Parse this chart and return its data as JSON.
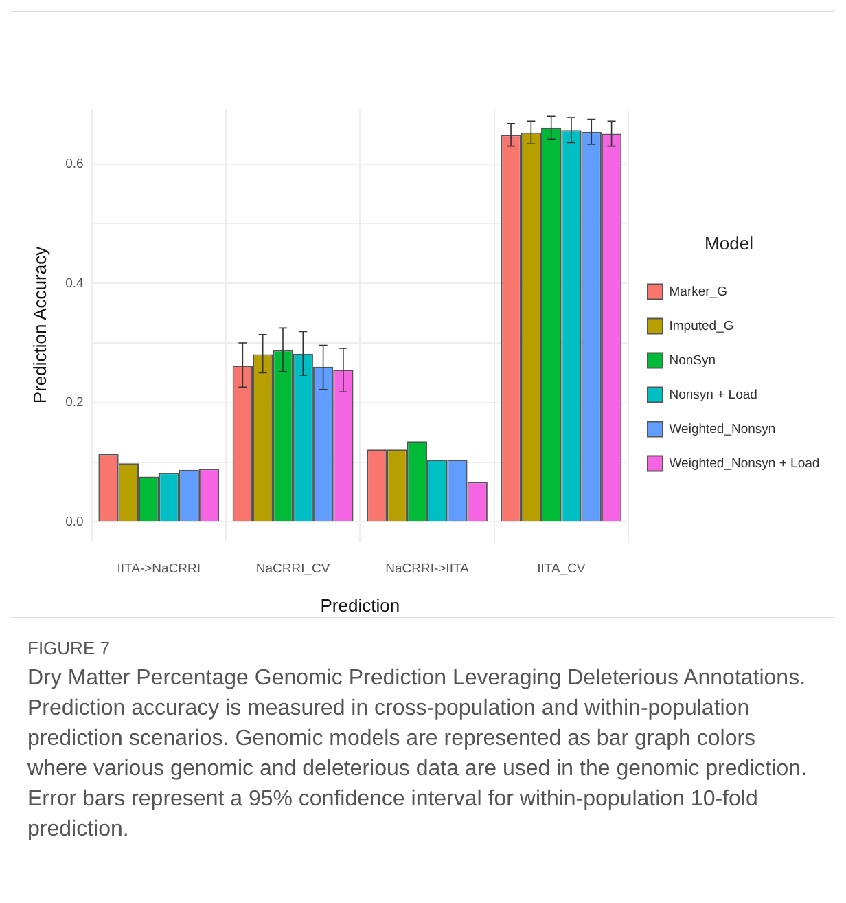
{
  "chart_data": {
    "type": "bar",
    "categories": [
      "IITA->NaCRRI",
      "NaCRRI_CV",
      "NaCRRI->IITA",
      "IITA_CV"
    ],
    "series": [
      {
        "name": "Marker_G",
        "color": "#f8766d",
        "values": [
          0.114,
          0.262,
          0.121,
          0.649
        ],
        "errors": [
          null,
          [
            0.226,
            0.3
          ],
          null,
          [
            0.63,
            0.668
          ]
        ]
      },
      {
        "name": "Imputed_G",
        "color": "#b79f00",
        "values": [
          0.098,
          0.281,
          0.121,
          0.653
        ],
        "errors": [
          null,
          [
            0.25,
            0.314
          ],
          null,
          [
            0.634,
            0.672
          ]
        ]
      },
      {
        "name": "NonSyn",
        "color": "#00ba38",
        "values": [
          0.076,
          0.288,
          0.135,
          0.661
        ],
        "errors": [
          null,
          [
            0.252,
            0.325
          ],
          null,
          [
            0.642,
            0.68
          ]
        ]
      },
      {
        "name": "Nonsyn + Load",
        "color": "#00bfc4",
        "values": [
          0.082,
          0.282,
          0.104,
          0.657
        ],
        "errors": [
          null,
          [
            0.246,
            0.319
          ],
          null,
          [
            0.636,
            0.678
          ]
        ]
      },
      {
        "name": "Weighted_Nonsyn",
        "color": "#619cff",
        "values": [
          0.087,
          0.26,
          0.104,
          0.654
        ],
        "errors": [
          null,
          [
            0.222,
            0.296
          ],
          null,
          [
            0.633,
            0.675
          ]
        ]
      },
      {
        "name": "Weighted_Nonsyn + Load",
        "color": "#f564e3",
        "values": [
          0.089,
          0.255,
          0.067,
          0.651
        ],
        "errors": [
          null,
          [
            0.218,
            0.291
          ],
          null,
          [
            0.63,
            0.672
          ]
        ]
      }
    ],
    "xlabel": "Prediction",
    "ylabel": "Prediction Accuracy",
    "legend_title": "Model",
    "ylim": [
      -0.033,
      0.693
    ],
    "yticks": [
      {
        "value": 0,
        "label": "0.0"
      },
      {
        "value": 0.1,
        "label": null
      },
      0.2,
      {
        "value": 0.3,
        "label": null
      },
      0.4,
      {
        "value": 0.5,
        "label": null
      },
      0.6
    ],
    "grid": true,
    "legend": "right",
    "annotations": [
      "FIGURE 7",
      "Dry Matter Percentage Genomic Prediction Leveraging Deleterious Annotations. Prediction accuracy is measured in cross-population and within-population prediction scenarios. Genomic models are represented as bar graph colors where various genomic and deleterious data are used in the genomic prediction. Error bars represent a 95% confidence interval for within-population 10-fold prediction."
    ]
  }
}
